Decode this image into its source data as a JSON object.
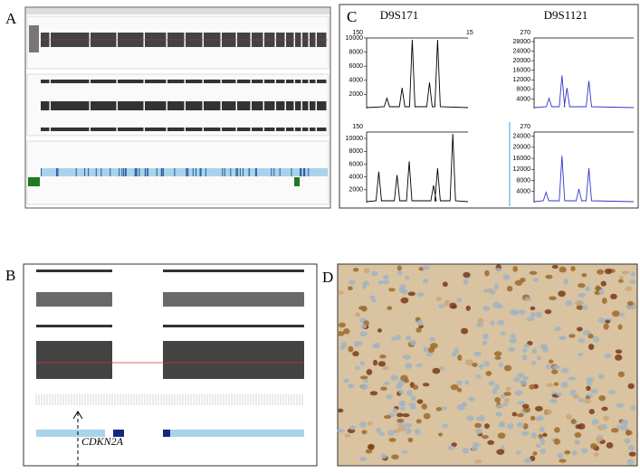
{
  "labels": {
    "a": "A",
    "b": "B",
    "c": "C",
    "d": "D"
  },
  "panel_b": {
    "gene": "CDKN2A"
  },
  "panel_c": {
    "markers": [
      "D9S171",
      "D9S1121"
    ],
    "plots": [
      {
        "top_labels": [
          150,
          15
        ],
        "ylim": [
          0,
          10000
        ],
        "yticks": [
          2000,
          4000,
          6000,
          8000,
          10000
        ],
        "color": "#000000"
      },
      {
        "top_labels": [
          270
        ],
        "ylim": [
          0,
          29500
        ],
        "yticks": [
          4000,
          8000,
          12000,
          16000,
          20000,
          24000,
          28000
        ],
        "color": "#3333cc"
      },
      {
        "top_labels": [
          150
        ],
        "ylim": [
          0,
          11000
        ],
        "yticks": [
          2000,
          4000,
          6000,
          8000,
          10000
        ],
        "color": "#000000"
      },
      {
        "top_labels": [
          270
        ],
        "ylim": [
          0,
          25500
        ],
        "yticks": [
          4000,
          8000,
          12000,
          16000,
          20000,
          24000
        ],
        "color": "#3333cc"
      }
    ]
  }
}
